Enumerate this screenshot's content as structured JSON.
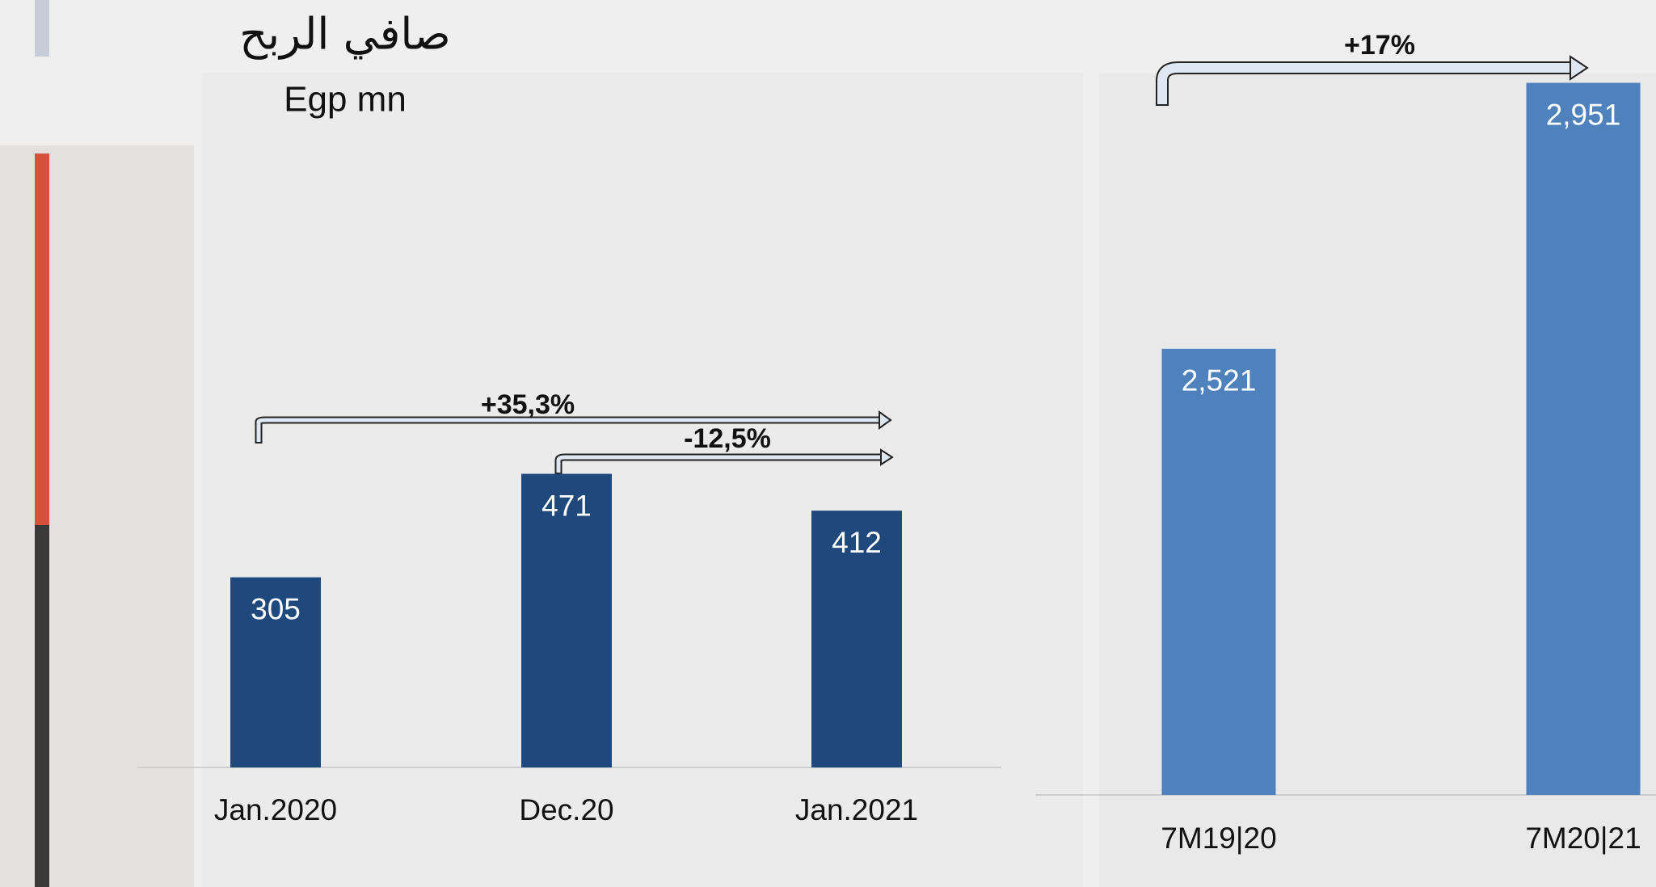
{
  "chart_data": [
    {
      "type": "bar",
      "title": "صافي الربح",
      "subtitle": "Egp mn",
      "categories": [
        "Jan.2020",
        "Dec.20",
        "Jan.2021"
      ],
      "values": [
        305,
        471,
        412
      ],
      "color": "#1f497d",
      "ylim": [
        0,
        600
      ],
      "annotations": [
        "+35,3%",
        "-12,5%"
      ]
    },
    {
      "type": "bar",
      "categories": [
        "7M19|20",
        "7M20|21"
      ],
      "values": [
        2521,
        2951
      ],
      "value_labels": [
        "2,521",
        "2,951"
      ],
      "color": "#4f81bd",
      "ylim": [
        1800,
        3000
      ],
      "annotations": [
        "+17%"
      ]
    }
  ]
}
